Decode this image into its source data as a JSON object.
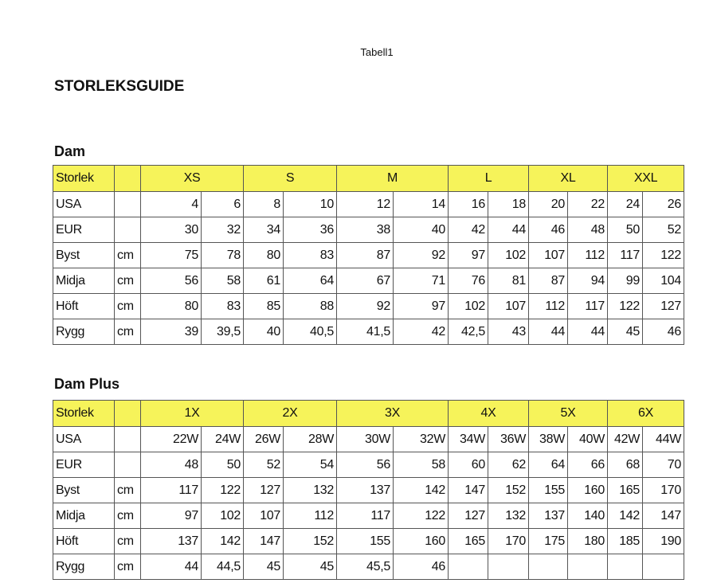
{
  "page_title": "Tabell1",
  "heading": "STORLEKSGUIDE",
  "tables": [
    {
      "title": "Dam",
      "header_label": "Storlek",
      "sizes": [
        "XS",
        "S",
        "M",
        "L",
        "XL",
        "XXL"
      ],
      "rows": [
        {
          "label": "USA",
          "unit": "",
          "values": [
            "4",
            "6",
            "8",
            "10",
            "12",
            "14",
            "16",
            "18",
            "20",
            "22",
            "24",
            "26"
          ]
        },
        {
          "label": "EUR",
          "unit": "",
          "values": [
            "30",
            "32",
            "34",
            "36",
            "38",
            "40",
            "42",
            "44",
            "46",
            "48",
            "50",
            "52"
          ]
        },
        {
          "label": "Byst",
          "unit": "cm",
          "values": [
            "75",
            "78",
            "80",
            "83",
            "87",
            "92",
            "97",
            "102",
            "107",
            "112",
            "117",
            "122"
          ]
        },
        {
          "label": "Midja",
          "unit": "cm",
          "values": [
            "56",
            "58",
            "61",
            "64",
            "67",
            "71",
            "76",
            "81",
            "87",
            "94",
            "99",
            "104"
          ]
        },
        {
          "label": "Höft",
          "unit": "cm",
          "values": [
            "80",
            "83",
            "85",
            "88",
            "92",
            "97",
            "102",
            "107",
            "112",
            "117",
            "122",
            "127"
          ]
        },
        {
          "label": "Rygg",
          "unit": "cm",
          "values": [
            "39",
            "39,5",
            "40",
            "40,5",
            "41,5",
            "42",
            "42,5",
            "43",
            "44",
            "44",
            "45",
            "46"
          ]
        }
      ]
    },
    {
      "title": "Dam Plus",
      "header_label": "Storlek",
      "sizes": [
        "1X",
        "2X",
        "3X",
        "4X",
        "5X",
        "6X"
      ],
      "rows": [
        {
          "label": "USA",
          "unit": "",
          "values": [
            "22W",
            "24W",
            "26W",
            "28W",
            "30W",
            "32W",
            "34W",
            "36W",
            "38W",
            "40W",
            "42W",
            "44W"
          ]
        },
        {
          "label": "EUR",
          "unit": "",
          "values": [
            "48",
            "50",
            "52",
            "54",
            "56",
            "58",
            "60",
            "62",
            "64",
            "66",
            "68",
            "70"
          ]
        },
        {
          "label": "Byst",
          "unit": "cm",
          "values": [
            "117",
            "122",
            "127",
            "132",
            "137",
            "142",
            "147",
            "152",
            "155",
            "160",
            "165",
            "170"
          ]
        },
        {
          "label": "Midja",
          "unit": "cm",
          "values": [
            "97",
            "102",
            "107",
            "112",
            "117",
            "122",
            "127",
            "132",
            "137",
            "140",
            "142",
            "147"
          ]
        },
        {
          "label": "Höft",
          "unit": "cm",
          "values": [
            "137",
            "142",
            "147",
            "152",
            "155",
            "160",
            "165",
            "170",
            "175",
            "180",
            "185",
            "190"
          ]
        },
        {
          "label": "Rygg",
          "unit": "cm",
          "values": [
            "44",
            "44,5",
            "45",
            "45",
            "45,5",
            "46",
            "",
            "",
            "",
            "",
            "",
            ""
          ]
        }
      ]
    }
  ],
  "colors": {
    "header_bg": "#f6f35a",
    "border": "#555555"
  }
}
